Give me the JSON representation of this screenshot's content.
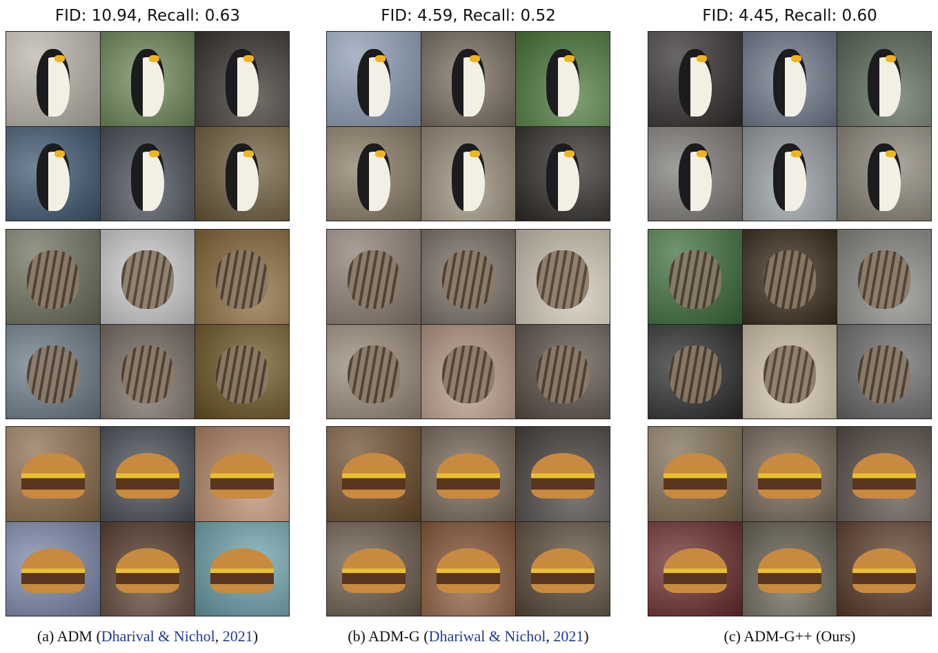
{
  "panels": [
    {
      "title": "FID: 10.94, Recall: 0.63",
      "caption": {
        "prefix": "(a) ADM (",
        "author": "Dharival & Nichol",
        "sep": ", ",
        "year": "2021",
        "suffix": ")"
      }
    },
    {
      "title": "FID: 4.59, Recall: 0.52",
      "caption": {
        "prefix": "(b) ADM-G (",
        "author": "Dhariwal & Nichol",
        "sep": ", ",
        "year": "2021",
        "suffix": ")"
      }
    },
    {
      "title": "FID: 4.45, Recall: 0.60",
      "caption": {
        "prefix": "(c) ADM-G++ (Ours)",
        "author": "",
        "sep": "",
        "year": "",
        "suffix": ""
      }
    }
  ],
  "image_colors": {
    "penguin": [
      "#b9b3a8",
      "#6f8a5a",
      "#3c3530",
      "#3d5770",
      "#4a4f58",
      "#6b5a3a",
      "#8a9bb2",
      "#7a6e60",
      "#4c7a3a",
      "#8a7a64",
      "#9a8e7a",
      "#2e2a27",
      "#2f2b2a",
      "#6e7a8a",
      "#5d6a5a",
      "#7d7a76",
      "#9aa0a4",
      "#8a8376"
    ],
    "cat": [
      "#6a6e5a",
      "#cfcfcf",
      "#8a6a3a",
      "#6a7a88",
      "#7a6f66",
      "#6a5420",
      "#8a7a70",
      "#7a7268",
      "#cfc7b5",
      "#9a8a7a",
      "#b89a88",
      "#5a5048",
      "#3a6a3a",
      "#3a2a1a",
      "#8a8a86",
      "#2a2a2a",
      "#d8c8b0",
      "#6a6a6a"
    ],
    "burger": [
      "#8a6a4a",
      "#4a5058",
      "#b88a6a",
      "#7a86a8",
      "#5a4030",
      "#6aa0a8",
      "#6a4a2a",
      "#7a6a5a",
      "#4a4440",
      "#6a5a4a",
      "#8a5a3a",
      "#5a4a3a",
      "#7a6a50",
      "#7a6a5a",
      "#5a5048",
      "#6a2a2a",
      "#6a6456",
      "#5a3a2a"
    ]
  },
  "subject_colors": {
    "penguin": [
      "#1c1c1e",
      "#f2efe4",
      "#f2b418"
    ],
    "cat": [
      "#8a7a66",
      "#4a3a2e"
    ],
    "burger": [
      "#c88a3e",
      "#5a3520",
      "#e8c030"
    ]
  }
}
